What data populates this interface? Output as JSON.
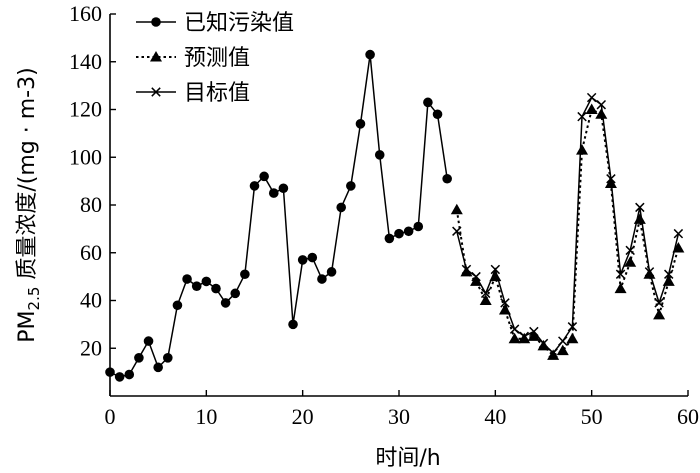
{
  "chart_data": {
    "type": "line",
    "xlabel": "时间/h",
    "ylabel_prefix": "PM",
    "ylabel_sub": "2.5",
    "ylabel_suffix": " 质量浓度/(mg · m-3)",
    "xlim": [
      0,
      60
    ],
    "ylim": [
      0,
      160
    ],
    "x_ticks": [
      0,
      10,
      20,
      30,
      40,
      50,
      60
    ],
    "y_ticks": [
      20,
      40,
      60,
      80,
      100,
      120,
      140,
      160
    ],
    "grid": false,
    "legend_position": "top-left",
    "series": [
      {
        "name": "已知污染值",
        "marker": "circle",
        "line": "solid",
        "x": [
          0,
          1,
          2,
          3,
          4,
          5,
          6,
          7,
          8,
          9,
          10,
          11,
          12,
          13,
          14,
          15,
          16,
          17,
          18,
          19,
          20,
          21,
          22,
          23,
          24,
          25,
          26,
          27,
          28,
          29,
          30,
          31,
          32,
          33,
          34,
          35
        ],
        "y": [
          10,
          8,
          9,
          16,
          23,
          12,
          16,
          38,
          49,
          46,
          48,
          45,
          39,
          43,
          51,
          88,
          92,
          85,
          87,
          30,
          57,
          58,
          49,
          52,
          79,
          88,
          114,
          143,
          101,
          66,
          68,
          69,
          71,
          123,
          118,
          91
        ]
      },
      {
        "name": "预测值",
        "marker": "triangle",
        "line": "dotted",
        "x": [
          36,
          37,
          38,
          39,
          40,
          41,
          42,
          43,
          44,
          45,
          46,
          47,
          48,
          49,
          50,
          51,
          52,
          53,
          54,
          55,
          56,
          57,
          58,
          59
        ],
        "y": [
          78,
          52,
          48,
          40,
          50,
          36,
          24,
          24,
          25,
          21,
          17,
          19,
          24,
          103,
          120,
          118,
          89,
          45,
          56,
          74,
          51,
          34,
          48,
          62
        ]
      },
      {
        "name": "目标值",
        "marker": "cross",
        "line": "solid",
        "x": [
          36,
          37,
          38,
          39,
          40,
          41,
          42,
          43,
          44,
          45,
          46,
          47,
          48,
          49,
          50,
          51,
          52,
          53,
          54,
          55,
          56,
          57,
          58,
          59
        ],
        "y": [
          69,
          53,
          50,
          43,
          53,
          39,
          28,
          25,
          27,
          22,
          18,
          23,
          29,
          117,
          125,
          122,
          91,
          51,
          61,
          79,
          52,
          39,
          51,
          68
        ]
      }
    ]
  }
}
